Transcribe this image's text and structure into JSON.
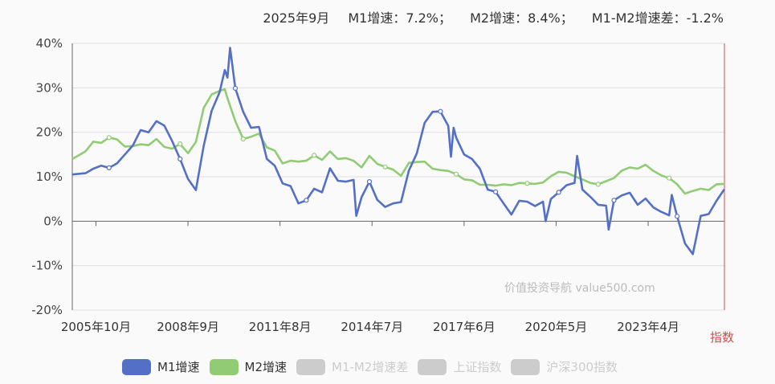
{
  "header": {
    "date": "2025年9月",
    "m1": "M1增速：7.2%；",
    "m2": "M2增速：8.4%；",
    "diff": "M1-M2增速差：-1.2%"
  },
  "watermark": "价值投资导航 value500.com",
  "index_label": "指数",
  "legend": [
    {
      "name": "M1增速",
      "color": "#5470c6",
      "active": true
    },
    {
      "name": "M2增速",
      "color": "#91cc75",
      "active": true
    },
    {
      "name": "M1-M2增速差",
      "color": "#cccccc",
      "active": false
    },
    {
      "name": "上证指数",
      "color": "#cccccc",
      "active": false
    },
    {
      "name": "沪深300指数",
      "color": "#cccccc",
      "active": false
    }
  ],
  "chart_data": {
    "type": "line",
    "y_ticks": [
      "40%",
      "30%",
      "20%",
      "10%",
      "0%",
      "-10%",
      "-20%"
    ],
    "ylim": [
      -20,
      40
    ],
    "x_ticks": [
      "2005年10月",
      "2008年9月",
      "2011年8月",
      "2014年7月",
      "2017年6月",
      "2020年5月",
      "2023年4月"
    ],
    "x_start": "2005-01",
    "x_end": "2025-09",
    "series": [
      {
        "name": "M1增速",
        "color": "#5470c6",
        "points": [
          [
            "2005-01",
            10.5
          ],
          [
            "2005-06",
            10.8
          ],
          [
            "2005-09",
            11.8
          ],
          [
            "2005-12",
            12.5
          ],
          [
            "2006-03",
            12.0
          ],
          [
            "2006-06",
            13.0
          ],
          [
            "2006-09",
            15.0
          ],
          [
            "2006-12",
            17.0
          ],
          [
            "2007-03",
            20.5
          ],
          [
            "2007-06",
            20.0
          ],
          [
            "2007-09",
            22.5
          ],
          [
            "2007-12",
            21.5
          ],
          [
            "2008-03",
            18.0
          ],
          [
            "2008-06",
            14.0
          ],
          [
            "2008-09",
            9.5
          ],
          [
            "2008-12",
            7.0
          ],
          [
            "2009-03",
            17.0
          ],
          [
            "2009-06",
            24.8
          ],
          [
            "2009-09",
            29.0
          ],
          [
            "2009-11",
            34.0
          ],
          [
            "2009-12",
            32.3
          ],
          [
            "2010-01",
            39.0
          ],
          [
            "2010-03",
            29.9
          ],
          [
            "2010-06",
            24.6
          ],
          [
            "2010-09",
            21.0
          ],
          [
            "2010-12",
            21.2
          ],
          [
            "2011-03",
            14.0
          ],
          [
            "2011-06",
            12.5
          ],
          [
            "2011-09",
            8.5
          ],
          [
            "2011-12",
            7.9
          ],
          [
            "2012-03",
            4.0
          ],
          [
            "2012-06",
            4.7
          ],
          [
            "2012-09",
            7.3
          ],
          [
            "2012-12",
            6.5
          ],
          [
            "2013-03",
            11.9
          ],
          [
            "2013-06",
            9.1
          ],
          [
            "2013-09",
            8.9
          ],
          [
            "2013-12",
            9.3
          ],
          [
            "2014-01",
            1.2
          ],
          [
            "2014-03",
            5.4
          ],
          [
            "2014-06",
            8.9
          ],
          [
            "2014-09",
            4.8
          ],
          [
            "2014-12",
            3.2
          ],
          [
            "2015-03",
            4.0
          ],
          [
            "2015-06",
            4.3
          ],
          [
            "2015-09",
            11.4
          ],
          [
            "2015-12",
            15.2
          ],
          [
            "2016-03",
            22.1
          ],
          [
            "2016-06",
            24.6
          ],
          [
            "2016-09",
            24.7
          ],
          [
            "2016-12",
            21.4
          ],
          [
            "2017-01",
            14.5
          ],
          [
            "2017-02",
            21.0
          ],
          [
            "2017-03",
            18.8
          ],
          [
            "2017-06",
            15.0
          ],
          [
            "2017-09",
            14.0
          ],
          [
            "2017-12",
            11.8
          ],
          [
            "2018-03",
            7.1
          ],
          [
            "2018-06",
            6.6
          ],
          [
            "2018-09",
            4.0
          ],
          [
            "2018-12",
            1.5
          ],
          [
            "2019-03",
            4.6
          ],
          [
            "2019-06",
            4.4
          ],
          [
            "2019-09",
            3.4
          ],
          [
            "2019-12",
            4.4
          ],
          [
            "2020-01",
            0.0
          ],
          [
            "2020-03",
            5.0
          ],
          [
            "2020-06",
            6.5
          ],
          [
            "2020-09",
            8.1
          ],
          [
            "2020-12",
            8.6
          ],
          [
            "2021-01",
            14.7
          ],
          [
            "2021-03",
            7.1
          ],
          [
            "2021-06",
            5.5
          ],
          [
            "2021-09",
            3.7
          ],
          [
            "2021-12",
            3.5
          ],
          [
            "2022-01",
            -1.9
          ],
          [
            "2022-03",
            4.7
          ],
          [
            "2022-06",
            5.8
          ],
          [
            "2022-09",
            6.4
          ],
          [
            "2022-12",
            3.7
          ],
          [
            "2023-03",
            5.1
          ],
          [
            "2023-06",
            3.1
          ],
          [
            "2023-09",
            2.1
          ],
          [
            "2023-12",
            1.3
          ],
          [
            "2024-01",
            5.9
          ],
          [
            "2024-03",
            1.1
          ],
          [
            "2024-06",
            -5.0
          ],
          [
            "2024-09",
            -7.4
          ],
          [
            "2024-12",
            1.2
          ],
          [
            "2025-03",
            1.6
          ],
          [
            "2025-06",
            4.6
          ],
          [
            "2025-09",
            7.2
          ]
        ]
      },
      {
        "name": "M2增速",
        "color": "#91cc75",
        "points": [
          [
            "2005-01",
            14.0
          ],
          [
            "2005-06",
            15.7
          ],
          [
            "2005-09",
            17.9
          ],
          [
            "2005-12",
            17.6
          ],
          [
            "2006-03",
            18.8
          ],
          [
            "2006-06",
            18.4
          ],
          [
            "2006-09",
            16.8
          ],
          [
            "2006-12",
            16.9
          ],
          [
            "2007-03",
            17.3
          ],
          [
            "2007-06",
            17.1
          ],
          [
            "2007-09",
            18.5
          ],
          [
            "2007-12",
            16.7
          ],
          [
            "2008-03",
            16.3
          ],
          [
            "2008-06",
            17.4
          ],
          [
            "2008-09",
            15.3
          ],
          [
            "2008-12",
            17.8
          ],
          [
            "2009-03",
            25.5
          ],
          [
            "2009-06",
            28.5
          ],
          [
            "2009-09",
            29.3
          ],
          [
            "2009-11",
            29.7
          ],
          [
            "2009-12",
            27.7
          ],
          [
            "2010-03",
            22.5
          ],
          [
            "2010-06",
            18.5
          ],
          [
            "2010-09",
            19.0
          ],
          [
            "2010-12",
            19.7
          ],
          [
            "2011-03",
            16.6
          ],
          [
            "2011-06",
            15.9
          ],
          [
            "2011-09",
            13.0
          ],
          [
            "2011-12",
            13.6
          ],
          [
            "2012-03",
            13.4
          ],
          [
            "2012-06",
            13.6
          ],
          [
            "2012-09",
            14.8
          ],
          [
            "2012-12",
            13.8
          ],
          [
            "2013-03",
            15.7
          ],
          [
            "2013-06",
            14.0
          ],
          [
            "2013-09",
            14.2
          ],
          [
            "2013-12",
            13.6
          ],
          [
            "2014-03",
            12.1
          ],
          [
            "2014-06",
            14.7
          ],
          [
            "2014-09",
            12.9
          ],
          [
            "2014-12",
            12.2
          ],
          [
            "2015-03",
            11.6
          ],
          [
            "2015-06",
            10.2
          ],
          [
            "2015-09",
            13.1
          ],
          [
            "2015-12",
            13.3
          ],
          [
            "2016-03",
            13.4
          ],
          [
            "2016-06",
            11.8
          ],
          [
            "2016-09",
            11.5
          ],
          [
            "2016-12",
            11.3
          ],
          [
            "2017-03",
            10.6
          ],
          [
            "2017-06",
            9.4
          ],
          [
            "2017-09",
            9.2
          ],
          [
            "2017-12",
            8.2
          ],
          [
            "2018-03",
            8.2
          ],
          [
            "2018-06",
            8.0
          ],
          [
            "2018-09",
            8.3
          ],
          [
            "2018-12",
            8.1
          ],
          [
            "2019-03",
            8.6
          ],
          [
            "2019-06",
            8.5
          ],
          [
            "2019-09",
            8.4
          ],
          [
            "2019-12",
            8.7
          ],
          [
            "2020-03",
            10.1
          ],
          [
            "2020-06",
            11.1
          ],
          [
            "2020-09",
            10.9
          ],
          [
            "2020-12",
            10.1
          ],
          [
            "2021-03",
            9.4
          ],
          [
            "2021-06",
            8.6
          ],
          [
            "2021-09",
            8.3
          ],
          [
            "2021-12",
            9.0
          ],
          [
            "2022-03",
            9.7
          ],
          [
            "2022-06",
            11.4
          ],
          [
            "2022-09",
            12.1
          ],
          [
            "2022-12",
            11.8
          ],
          [
            "2023-03",
            12.7
          ],
          [
            "2023-06",
            11.3
          ],
          [
            "2023-09",
            10.3
          ],
          [
            "2023-12",
            9.7
          ],
          [
            "2024-03",
            8.3
          ],
          [
            "2024-06",
            6.2
          ],
          [
            "2024-09",
            6.8
          ],
          [
            "2024-12",
            7.3
          ],
          [
            "2025-03",
            7.0
          ],
          [
            "2025-06",
            8.3
          ],
          [
            "2025-09",
            8.4
          ]
        ]
      }
    ],
    "grid": true,
    "legend_position": "bottom"
  }
}
